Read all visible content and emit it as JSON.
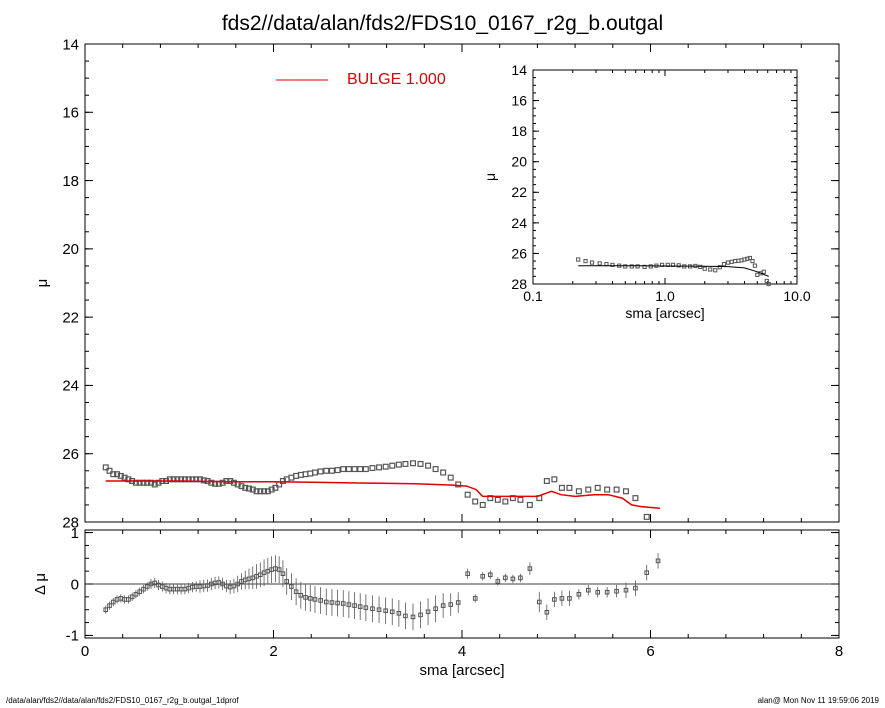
{
  "title": "fds2//data/alan/fds2/FDS10_0167_r2g_b.outgal",
  "footer": {
    "left": "/data/alan/fds2//data/alan/fds2/FDS10_0167_r2g_b.outgal_1dprof",
    "right": "alan@  Mon Nov 11 19:59:06 2019"
  },
  "colors": {
    "model": "#e00000",
    "data": "#555555",
    "axes": "#000000"
  },
  "chart_data": [
    {
      "id": "main",
      "type": "scatter",
      "xlabel": "sma [arcsec]",
      "ylabel": "μ",
      "xlim": [
        0,
        8
      ],
      "ylim": [
        28,
        14
      ],
      "xticks": [
        "0",
        "2",
        "4",
        "6",
        "8"
      ],
      "yticks": [
        "14",
        "16",
        "18",
        "20",
        "22",
        "24",
        "26",
        "28"
      ],
      "legend": {
        "label": "BULGE",
        "value": "1.000",
        "position": "top-center"
      },
      "series": [
        {
          "name": "data",
          "marker": "square",
          "x": [
            0.22,
            0.26,
            0.3,
            0.34,
            0.38,
            0.42,
            0.46,
            0.5,
            0.54,
            0.58,
            0.62,
            0.66,
            0.7,
            0.74,
            0.78,
            0.82,
            0.86,
            0.9,
            0.94,
            0.98,
            1.02,
            1.06,
            1.1,
            1.14,
            1.18,
            1.22,
            1.26,
            1.3,
            1.34,
            1.38,
            1.42,
            1.46,
            1.5,
            1.54,
            1.58,
            1.62,
            1.66,
            1.7,
            1.74,
            1.78,
            1.82,
            1.86,
            1.9,
            1.94,
            1.98,
            2.02,
            2.06,
            2.1,
            2.14,
            2.19,
            2.24,
            2.29,
            2.34,
            2.39,
            2.44,
            2.5,
            2.56,
            2.62,
            2.68,
            2.74,
            2.8,
            2.86,
            2.92,
            2.98,
            3.05,
            3.12,
            3.19,
            3.26,
            3.33,
            3.4,
            3.48,
            3.56,
            3.64,
            3.72,
            3.8,
            3.88,
            3.96,
            4.06,
            4.14,
            4.22,
            4.3,
            4.38,
            4.46,
            4.54,
            4.62,
            4.72,
            4.82,
            4.9,
            4.98,
            5.06,
            5.14,
            5.24,
            5.34,
            5.44,
            5.54,
            5.64,
            5.74,
            5.84,
            5.96,
            6.08
          ],
          "y": [
            26.4,
            26.5,
            26.6,
            26.6,
            26.65,
            26.7,
            26.75,
            26.8,
            26.85,
            26.85,
            26.85,
            26.85,
            26.85,
            26.9,
            26.85,
            26.8,
            26.8,
            26.75,
            26.75,
            26.75,
            26.75,
            26.75,
            26.75,
            26.75,
            26.75,
            26.75,
            26.78,
            26.8,
            26.85,
            26.88,
            26.88,
            26.85,
            26.8,
            26.8,
            26.85,
            26.9,
            26.95,
            27.0,
            27.02,
            27.05,
            27.1,
            27.1,
            27.1,
            27.1,
            27.05,
            27.0,
            26.9,
            26.8,
            26.75,
            26.7,
            26.65,
            26.62,
            26.6,
            26.58,
            26.55,
            26.52,
            26.5,
            26.5,
            26.48,
            26.45,
            26.45,
            26.45,
            26.45,
            26.45,
            26.42,
            26.4,
            26.38,
            26.35,
            26.32,
            26.3,
            26.28,
            26.3,
            26.35,
            26.45,
            26.55,
            26.7,
            26.9,
            27.2,
            27.4,
            27.5,
            27.3,
            27.35,
            27.4,
            27.3,
            27.35,
            27.5,
            27.3,
            26.8,
            26.75,
            27.0,
            27.0,
            27.1,
            27.05,
            27.0,
            27.05,
            27.05,
            27.1,
            27.3,
            27.85,
            28.1
          ]
        },
        {
          "name": "model",
          "marker": "line",
          "x": [
            0.22,
            0.5,
            1.0,
            1.5,
            2.0,
            2.5,
            3.0,
            3.5,
            3.9,
            4.05,
            4.15,
            4.22,
            4.5,
            4.8,
            4.95,
            5.05,
            5.2,
            5.4,
            5.55,
            5.7,
            5.8,
            5.9,
            6.1
          ],
          "y": [
            26.8,
            26.8,
            26.8,
            26.82,
            26.82,
            26.84,
            26.86,
            26.88,
            26.92,
            26.95,
            27.05,
            27.25,
            27.25,
            27.25,
            27.1,
            27.2,
            27.25,
            27.2,
            27.2,
            27.3,
            27.5,
            27.55,
            27.6
          ]
        }
      ]
    },
    {
      "id": "residual",
      "type": "scatter",
      "xlabel": "sma [arcsec]",
      "ylabel": "Δ μ",
      "xlim": [
        0,
        8
      ],
      "ylim": [
        -1.05,
        1.05
      ],
      "xticks": [
        "0",
        "2",
        "4",
        "6",
        "8"
      ],
      "yticks": [
        "1",
        "0",
        "-1"
      ],
      "series": [
        {
          "name": "residual",
          "marker": "square",
          "x": [
            0.22,
            0.26,
            0.3,
            0.34,
            0.38,
            0.42,
            0.46,
            0.5,
            0.54,
            0.58,
            0.62,
            0.66,
            0.7,
            0.74,
            0.78,
            0.82,
            0.86,
            0.9,
            0.94,
            0.98,
            1.02,
            1.06,
            1.1,
            1.14,
            1.18,
            1.22,
            1.26,
            1.3,
            1.34,
            1.38,
            1.42,
            1.46,
            1.5,
            1.54,
            1.58,
            1.62,
            1.66,
            1.7,
            1.74,
            1.78,
            1.82,
            1.86,
            1.9,
            1.94,
            1.98,
            2.02,
            2.06,
            2.1,
            2.14,
            2.19,
            2.24,
            2.29,
            2.34,
            2.39,
            2.44,
            2.5,
            2.56,
            2.62,
            2.68,
            2.74,
            2.8,
            2.86,
            2.92,
            2.98,
            3.05,
            3.12,
            3.19,
            3.26,
            3.33,
            3.4,
            3.48,
            3.56,
            3.64,
            3.72,
            3.8,
            3.88,
            3.96,
            4.06,
            4.14,
            4.22,
            4.3,
            4.38,
            4.46,
            4.54,
            4.62,
            4.72,
            4.82,
            4.9,
            4.98,
            5.06,
            5.14,
            5.24,
            5.34,
            5.44,
            5.54,
            5.64,
            5.74,
            5.84,
            5.96,
            6.08
          ],
          "y": [
            -0.5,
            -0.42,
            -0.35,
            -0.3,
            -0.28,
            -0.3,
            -0.3,
            -0.25,
            -0.2,
            -0.15,
            -0.1,
            -0.05,
            0.0,
            0.02,
            -0.02,
            -0.05,
            -0.08,
            -0.1,
            -0.1,
            -0.1,
            -0.1,
            -0.1,
            -0.08,
            -0.06,
            -0.05,
            -0.05,
            -0.04,
            -0.03,
            0.0,
            0.02,
            0.03,
            0.0,
            -0.04,
            -0.06,
            -0.04,
            0.0,
            0.05,
            0.08,
            0.1,
            0.12,
            0.15,
            0.18,
            0.22,
            0.25,
            0.28,
            0.3,
            0.28,
            0.2,
            0.05,
            -0.05,
            -0.15,
            -0.22,
            -0.26,
            -0.28,
            -0.3,
            -0.32,
            -0.35,
            -0.36,
            -0.37,
            -0.38,
            -0.4,
            -0.42,
            -0.44,
            -0.46,
            -0.48,
            -0.5,
            -0.52,
            -0.54,
            -0.57,
            -0.62,
            -0.64,
            -0.6,
            -0.54,
            -0.48,
            -0.42,
            -0.4,
            -0.36,
            0.2,
            -0.28,
            0.15,
            0.18,
            0.05,
            0.12,
            0.1,
            0.12,
            0.3,
            -0.35,
            -0.55,
            -0.3,
            -0.28,
            -0.28,
            -0.2,
            -0.12,
            -0.16,
            -0.16,
            -0.14,
            -0.12,
            -0.08,
            0.22,
            0.45
          ],
          "error": [
            0.08,
            0.08,
            0.08,
            0.08,
            0.08,
            0.08,
            0.08,
            0.08,
            0.08,
            0.08,
            0.08,
            0.08,
            0.1,
            0.1,
            0.1,
            0.1,
            0.1,
            0.1,
            0.1,
            0.1,
            0.1,
            0.1,
            0.1,
            0.1,
            0.1,
            0.12,
            0.12,
            0.12,
            0.12,
            0.12,
            0.12,
            0.12,
            0.12,
            0.14,
            0.14,
            0.16,
            0.16,
            0.18,
            0.2,
            0.22,
            0.24,
            0.24,
            0.26,
            0.26,
            0.26,
            0.26,
            0.26,
            0.26,
            0.26,
            0.26,
            0.26,
            0.26,
            0.26,
            0.26,
            0.26,
            0.26,
            0.26,
            0.26,
            0.26,
            0.26,
            0.26,
            0.26,
            0.26,
            0.26,
            0.26,
            0.26,
            0.26,
            0.26,
            0.26,
            0.26,
            0.26,
            0.26,
            0.26,
            0.26,
            0.24,
            0.22,
            0.2,
            0.1,
            0.08,
            0.08,
            0.08,
            0.08,
            0.08,
            0.08,
            0.08,
            0.12,
            0.2,
            0.15,
            0.15,
            0.15,
            0.15,
            0.1,
            0.1,
            0.1,
            0.1,
            0.12,
            0.15,
            0.15,
            0.15,
            0.15
          ]
        }
      ]
    },
    {
      "id": "inset",
      "type": "line",
      "xlabel": "sma [arcsec]",
      "ylabel": "μ",
      "xscale": "log",
      "xlim": [
        0.1,
        10.0
      ],
      "ylim": [
        28,
        14
      ],
      "xticks": [
        "0.1",
        "1.0",
        "10.0"
      ],
      "yticks": [
        "14",
        "16",
        "18",
        "20",
        "22",
        "24",
        "26",
        "28"
      ],
      "series": [
        {
          "name": "data",
          "marker": "square",
          "x": [
            0.22,
            0.25,
            0.28,
            0.32,
            0.36,
            0.4,
            0.45,
            0.5,
            0.56,
            0.62,
            0.7,
            0.78,
            0.86,
            0.95,
            1.05,
            1.15,
            1.27,
            1.4,
            1.55,
            1.7,
            1.85,
            2.0,
            2.2,
            2.4,
            2.6,
            2.8,
            3.0,
            3.2,
            3.4,
            3.6,
            3.8,
            4.0,
            4.2,
            4.4,
            4.6,
            4.8,
            5.0,
            5.3,
            5.6,
            5.9,
            6.1
          ],
          "y": [
            26.4,
            26.5,
            26.6,
            26.65,
            26.7,
            26.75,
            26.8,
            26.85,
            26.85,
            26.85,
            26.88,
            26.85,
            26.8,
            26.75,
            26.75,
            26.75,
            26.78,
            26.85,
            26.85,
            26.82,
            26.88,
            27.0,
            27.05,
            27.1,
            26.9,
            26.7,
            26.6,
            26.55,
            26.5,
            26.48,
            26.45,
            26.4,
            26.35,
            26.3,
            26.5,
            26.8,
            27.4,
            27.3,
            27.2,
            27.8,
            28.0
          ]
        },
        {
          "name": "model",
          "marker": "line",
          "x": [
            0.22,
            0.5,
            1.0,
            2.0,
            3.0,
            4.0,
            5.0,
            6.1
          ],
          "y": [
            26.8,
            26.8,
            26.82,
            26.84,
            26.86,
            26.95,
            27.2,
            27.5
          ]
        }
      ]
    }
  ]
}
